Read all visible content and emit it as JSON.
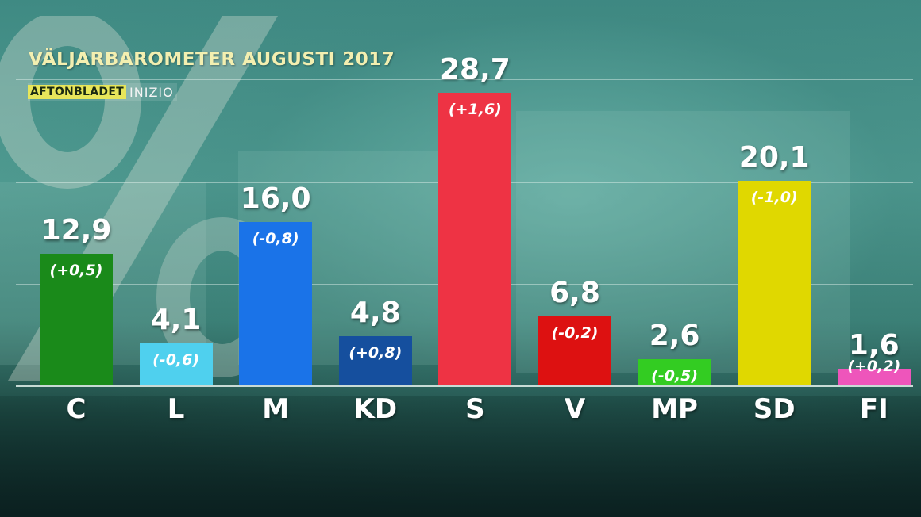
{
  "title": "VÄLJARBAROMETER AUGUSTI 2017",
  "logo": {
    "publisher": "AFTONBLADET",
    "pollster": "INIZIO"
  },
  "colors": {
    "C": "#1a8a1a",
    "L": "#4fd0ee",
    "M": "#1a73e8",
    "KD": "#154f9e",
    "S": "#ee3344",
    "V": "#dd1111",
    "MP": "#33cc22",
    "SD": "#e0d800",
    "FI": "#ee55bb"
  },
  "chart_data": {
    "type": "bar",
    "categories": [
      "C",
      "L",
      "M",
      "KD",
      "S",
      "V",
      "MP",
      "SD",
      "FI"
    ],
    "values": [
      12.9,
      4.1,
      16.0,
      4.8,
      28.7,
      6.8,
      2.6,
      20.1,
      1.6
    ],
    "value_labels": [
      "12,9",
      "4,1",
      "16,0",
      "4,8",
      "28,7",
      "6,8",
      "2,6",
      "20,1",
      "1,6"
    ],
    "changes": [
      "(+0,5)",
      "(-0,6)",
      "(-0,8)",
      "(+0,8)",
      "(+1,6)",
      "(-0,2)",
      "(-0,5)",
      "(-1,0)",
      "(+0,2)"
    ],
    "title": "VÄLJARBAROMETER AUGUSTI 2017",
    "ylim": [
      0,
      30
    ],
    "grid": true,
    "legend": "none"
  }
}
